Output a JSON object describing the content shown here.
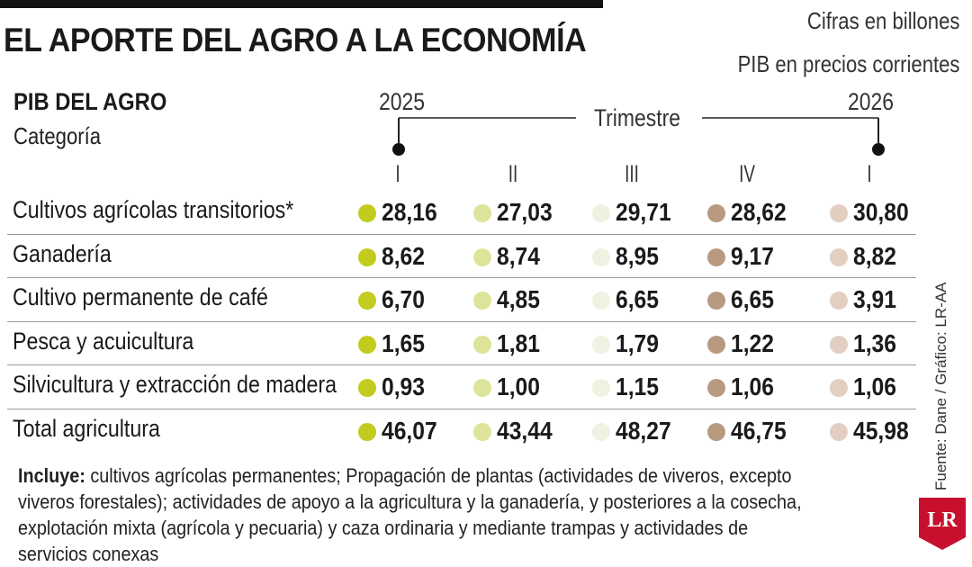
{
  "title": "EL APORTE DEL AGRO A LA ECONOMÍA",
  "notes": [
    "Cifras en billones",
    "PIB en precios corrientes"
  ],
  "subtitle": "PIB DEL AGRO",
  "category_label": "Categoría",
  "year_left": "2025",
  "year_right": "2026",
  "period_label": "Trimestre",
  "colors": {
    "q1": "#c2cc1e",
    "q2": "#dde49a",
    "q3": "#eef2e0",
    "q4": "#b89a80",
    "q5": "#e2cfc2"
  },
  "chart_data": {
    "type": "table",
    "columns": [
      "I",
      "II",
      "III",
      "IV",
      "I"
    ],
    "rows": [
      {
        "category": "Cultivos agrícolas transitorios*",
        "values": [
          "28,16",
          "27,03",
          "29,71",
          "28,62",
          "30,80"
        ]
      },
      {
        "category": "Ganadería",
        "values": [
          "8,62",
          "8,74",
          "8,95",
          "9,17",
          "8,82"
        ]
      },
      {
        "category": "Cultivo permanente de café",
        "values": [
          "6,70",
          "4,85",
          "6,65",
          "6,65",
          "3,91"
        ]
      },
      {
        "category": "Pesca y acuicultura",
        "values": [
          "1,65",
          "1,81",
          "1,79",
          "1,22",
          "1,36"
        ]
      },
      {
        "category": "Silvicultura y extracción de madera",
        "values": [
          "0,93",
          "1,00",
          "1,15",
          "1,06",
          "1,06"
        ]
      },
      {
        "category": "Total agricultura",
        "values": [
          "46,07",
          "43,44",
          "48,27",
          "46,75",
          "45,98"
        ]
      }
    ]
  },
  "footnote": {
    "bold": "Incluye:",
    "text": " cultivos agrícolas permanentes; Propagación de plantas (actividades de viveros, excepto viveros forestales); actividades de apoyo a la agricultura y la ganadería, y posteriores a la cosecha, explotación mixta (agrícola y pecuaria) y caza ordinaria y mediante trampas y actividades de servicios conexas"
  },
  "source": "Fuente: Dane / Gráfico: LR-AA",
  "logo_text": "LR"
}
